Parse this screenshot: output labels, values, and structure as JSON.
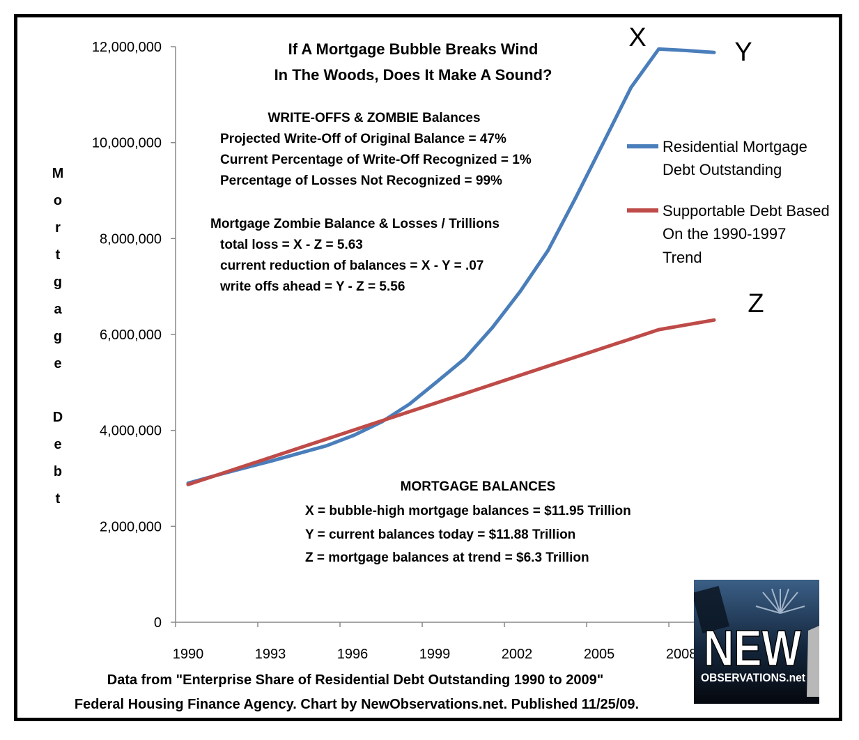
{
  "chart_data": {
    "type": "line",
    "title": [
      "If A Mortgage Bubble Breaks Wind",
      "In The Woods, Does It Make A Sound?"
    ],
    "ylabel": "Mortgage Debt",
    "xlabel": "",
    "ylim": [
      0,
      12000000
    ],
    "yticks": [
      "0",
      "2,000,000",
      "4,000,000",
      "6,000,000",
      "8,000,000",
      "10,000,000",
      "12,000,000"
    ],
    "xticks": [
      "1990",
      "1993",
      "1996",
      "1999",
      "2002",
      "2005",
      "2008"
    ],
    "x": [
      1990,
      1991,
      1992,
      1993,
      1994,
      1995,
      1996,
      1997,
      1998,
      1999,
      2000,
      2001,
      2002,
      2003,
      2004,
      2005,
      2006,
      2007,
      2008,
      2009
    ],
    "series": [
      {
        "name": "Residential Mortgage Debt Outstanding",
        "color": "#4a7ebb",
        "values": [
          2900000,
          3060000,
          3210000,
          3360000,
          3520000,
          3680000,
          3900000,
          4180000,
          4550000,
          5020000,
          5500000,
          6150000,
          6900000,
          7750000,
          8850000,
          10000000,
          11150000,
          11950000,
          11920000,
          11880000
        ]
      },
      {
        "name": "Supportable Debt Based On the 1990-1997 Trend",
        "color": "#be4b48",
        "values": [
          2870000,
          3060000,
          3250000,
          3440000,
          3630000,
          3820000,
          4010000,
          4200000,
          4390000,
          4580000,
          4770000,
          4960000,
          5150000,
          5340000,
          5530000,
          5720000,
          5910000,
          6100000,
          6200000,
          6300000
        ]
      }
    ],
    "legend": {
      "placement": "right",
      "lines": [
        [
          "Residential Mortgage",
          "Debt Outstanding"
        ],
        [
          "Supportable Debt Based",
          "On the 1990-1997",
          "Trend"
        ]
      ]
    },
    "markers": {
      "x": "X",
      "y": "Y",
      "z": "Z"
    },
    "annotations": {
      "writeoffs": [
        "WRITE-OFFS & ZOMBIE Balances",
        "Projected Write-Off of Original Balance = 47%",
        "Current Percentage of Write-Off Recognized = 1%",
        "Percentage of Losses Not Recognized = 99%"
      ],
      "zombie": [
        "Mortgage Zombie Balance & Losses / Trillions",
        "total loss = X - Z = 5.63",
        "current reduction of balances = X - Y = .07",
        "write offs ahead  =  Y - Z = 5.56"
      ],
      "balances": [
        "MORTGAGE BALANCES",
        "X = bubble-high mortgage balances = $11.95 Trillion",
        "Y = current balances today = $11.88 Trillion",
        "Z = mortgage balances at trend = $6.3 Trillion"
      ]
    },
    "footer": [
      "Data from \"Enterprise Share of Residential Debt Outstanding 1990 to 2009\"",
      "Federal Housing Finance Agency. Chart by NewObservations.net. Published 11/25/09."
    ],
    "grid": false
  },
  "logo": {
    "main": "NEW",
    "sub": "OBSERVATIONS.net"
  },
  "colors": {
    "series1": "#4a7ebb",
    "series2": "#be4b48",
    "frame": "#000000"
  }
}
